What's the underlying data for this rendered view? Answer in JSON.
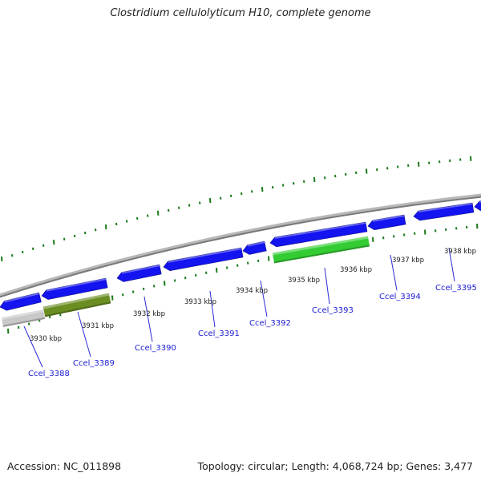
{
  "map": {
    "title": "Clostridium cellulolyticum H10, complete genome",
    "footer_accession": "Accession: NC_011898",
    "footer_stats": "Topology: circular; Length: 4,068,724 bp; Genes: 3,477",
    "colors": {
      "backbone": "#8c8c8c",
      "cds": "#1414f0",
      "gene_link": "#2b2bd6",
      "gene_label": "#1a1ad0",
      "tick": "#1a7a1a",
      "tick_label": "#222222"
    },
    "kbp_labels": [
      {
        "text": "3930 kbp"
      },
      {
        "text": "3931 kbp"
      },
      {
        "text": "3932 kbp"
      },
      {
        "text": "3933 kbp"
      },
      {
        "text": "3934 kbp"
      },
      {
        "text": "3935 kbp"
      },
      {
        "text": "3936 kbp"
      },
      {
        "text": "3937 kbp"
      },
      {
        "text": "3938 kbp"
      }
    ],
    "gene_labels": [
      {
        "text": "Ccel_3388"
      },
      {
        "text": "Ccel_3389"
      },
      {
        "text": "Ccel_3390"
      },
      {
        "text": "Ccel_3391"
      },
      {
        "text": "Ccel_3392"
      },
      {
        "text": "Ccel_3393"
      },
      {
        "text": "Ccel_3394"
      },
      {
        "text": "Ccel_3395"
      }
    ],
    "features": [
      {
        "name": "Ccel_3388",
        "color": "#c8c8c8",
        "strand": "+"
      },
      {
        "name": "Ccel_3389",
        "color": "#6b8e23",
        "strand": "+"
      },
      {
        "name": "Ccel_3393",
        "color": "#33cc33",
        "strand": "+"
      },
      {
        "name": "",
        "color": "#1414f0",
        "strand": "-"
      }
    ]
  }
}
